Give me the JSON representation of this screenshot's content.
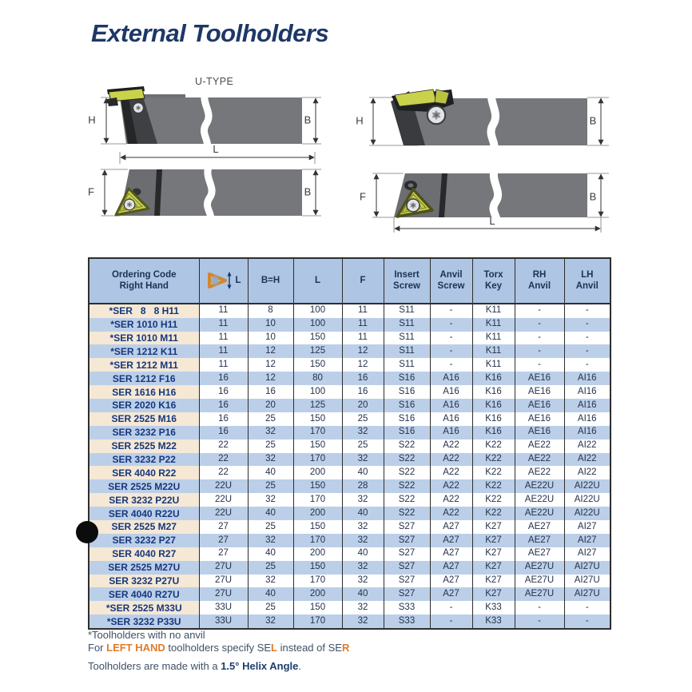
{
  "page": {
    "title": "External Toolholders",
    "type_label": "U-TYPE"
  },
  "colors": {
    "navy": "#1d3c78",
    "orange": "#e07b28",
    "row_blue": "#bccfe9",
    "header_blue": "#aec5e3",
    "row_beige": "#f5e8d5",
    "insert_yellow": "#c9d24b"
  },
  "diagrams": {
    "dims": {
      "h": "H",
      "b": "B",
      "f": "F",
      "l": "L"
    }
  },
  "table": {
    "headers": [
      "Ordering Code\nRight Hand",
      "L",
      "B=H",
      "L",
      "F",
      "Insert\nScrew",
      "Anvil\nScrew",
      "Torx\nKey",
      "RH\nAnvil",
      "LH\nAnvil"
    ],
    "rows": [
      {
        "code": "*SER   8   8 H11",
        "values": [
          "11",
          "8",
          "100",
          "11",
          "S11",
          "-",
          "K11",
          "-",
          "-"
        ]
      },
      {
        "code": "*SER 1010 H11",
        "values": [
          "11",
          "10",
          "100",
          "11",
          "S11",
          "-",
          "K11",
          "-",
          "-"
        ]
      },
      {
        "code": "*SER 1010 M11",
        "values": [
          "11",
          "10",
          "150",
          "11",
          "S11",
          "-",
          "K11",
          "-",
          "-"
        ]
      },
      {
        "code": "*SER 1212 K11",
        "values": [
          "11",
          "12",
          "125",
          "12",
          "S11",
          "-",
          "K11",
          "-",
          "-"
        ]
      },
      {
        "code": "*SER 1212 M11",
        "values": [
          "11",
          "12",
          "150",
          "12",
          "S11",
          "-",
          "K11",
          "-",
          "-"
        ]
      },
      {
        "code": "SER 1212 F16",
        "values": [
          "16",
          "12",
          "80",
          "16",
          "S16",
          "A16",
          "K16",
          "AE16",
          "AI16"
        ]
      },
      {
        "code": "SER 1616 H16",
        "values": [
          "16",
          "16",
          "100",
          "16",
          "S16",
          "A16",
          "K16",
          "AE16",
          "AI16"
        ]
      },
      {
        "code": "SER 2020 K16",
        "values": [
          "16",
          "20",
          "125",
          "20",
          "S16",
          "A16",
          "K16",
          "AE16",
          "AI16"
        ]
      },
      {
        "code": "SER 2525 M16",
        "values": [
          "16",
          "25",
          "150",
          "25",
          "S16",
          "A16",
          "K16",
          "AE16",
          "AI16"
        ]
      },
      {
        "code": "SER 3232 P16",
        "values": [
          "16",
          "32",
          "170",
          "32",
          "S16",
          "A16",
          "K16",
          "AE16",
          "AI16"
        ]
      },
      {
        "code": "SER 2525 M22",
        "values": [
          "22",
          "25",
          "150",
          "25",
          "S22",
          "A22",
          "K22",
          "AE22",
          "AI22"
        ]
      },
      {
        "code": "SER 3232 P22",
        "values": [
          "22",
          "32",
          "170",
          "32",
          "S22",
          "A22",
          "K22",
          "AE22",
          "AI22"
        ]
      },
      {
        "code": "SER 4040 R22",
        "values": [
          "22",
          "40",
          "200",
          "40",
          "S22",
          "A22",
          "K22",
          "AE22",
          "AI22"
        ]
      },
      {
        "code": "SER 2525 M22U",
        "values": [
          "22U",
          "25",
          "150",
          "28",
          "S22",
          "A22",
          "K22",
          "AE22U",
          "AI22U"
        ]
      },
      {
        "code": "SER 3232 P22U",
        "values": [
          "22U",
          "32",
          "170",
          "32",
          "S22",
          "A22",
          "K22",
          "AE22U",
          "AI22U"
        ]
      },
      {
        "code": "SER 4040 R22U",
        "values": [
          "22U",
          "40",
          "200",
          "40",
          "S22",
          "A22",
          "K22",
          "AE22U",
          "AI22U"
        ]
      },
      {
        "code": "SER 2525 M27",
        "values": [
          "27",
          "25",
          "150",
          "32",
          "S27",
          "A27",
          "K27",
          "AE27",
          "AI27"
        ]
      },
      {
        "code": "SER 3232 P27",
        "values": [
          "27",
          "32",
          "170",
          "32",
          "S27",
          "A27",
          "K27",
          "AE27",
          "AI27"
        ]
      },
      {
        "code": "SER 4040 R27",
        "values": [
          "27",
          "40",
          "200",
          "40",
          "S27",
          "A27",
          "K27",
          "AE27",
          "AI27"
        ]
      },
      {
        "code": "SER 2525 M27U",
        "values": [
          "27U",
          "25",
          "150",
          "32",
          "S27",
          "A27",
          "K27",
          "AE27U",
          "AI27U"
        ]
      },
      {
        "code": "SER 3232 P27U",
        "values": [
          "27U",
          "32",
          "170",
          "32",
          "S27",
          "A27",
          "K27",
          "AE27U",
          "AI27U"
        ]
      },
      {
        "code": "SER 4040 R27U",
        "values": [
          "27U",
          "40",
          "200",
          "40",
          "S27",
          "A27",
          "K27",
          "AE27U",
          "AI27U"
        ]
      },
      {
        "code": "*SER 2525 M33U",
        "values": [
          "33U",
          "25",
          "150",
          "32",
          "S33",
          "-",
          "K33",
          "-",
          "-"
        ]
      },
      {
        "code": "*SER 3232 P33U",
        "values": [
          "33U",
          "32",
          "170",
          "32",
          "S33",
          "-",
          "K33",
          "-",
          "-"
        ]
      }
    ]
  },
  "footer": {
    "note1": "*Toolholders with no anvil",
    "note2_prefix": "For ",
    "note2_highlight": "LEFT HAND",
    "note2_mid": " toolholders specify ",
    "note2_sel_base": "SE",
    "note2_sel_suffix": "L",
    "note2_mid2": " instead of ",
    "note2_ser_base": "SE",
    "note2_ser_suffix": "R",
    "note3_prefix": "Toolholders are made with a ",
    "note3_bold": "1.5° Helix Angle",
    "note3_end": "."
  }
}
